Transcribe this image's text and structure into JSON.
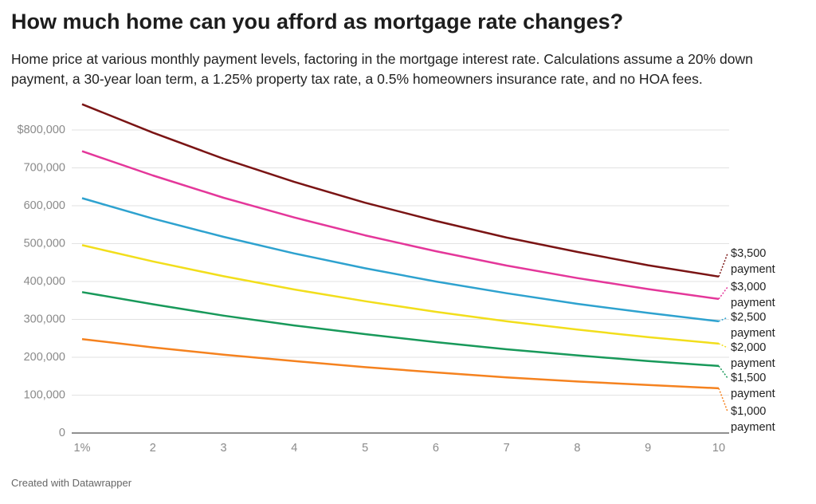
{
  "chart_data": {
    "type": "line",
    "title": "How much home can you afford as mortgage rate changes?",
    "subtitle": "Home price at various monthly payment levels, factoring in the mortgage interest rate. Calculations assume a 20% down payment, a 30-year loan term, a 1.25% property tax rate, a 0.5% homeowners insurance rate, and no HOA fees.",
    "footer": "Created with Datawrapper",
    "x": [
      1,
      2,
      3,
      4,
      5,
      6,
      7,
      8,
      9,
      10
    ],
    "xlim": [
      1,
      10
    ],
    "xticks": [
      {
        "value": 1,
        "label": "1%"
      },
      2,
      3,
      4,
      5,
      6,
      7,
      8,
      9,
      10
    ],
    "ylim": [
      0,
      880000
    ],
    "yticks": [
      0,
      {
        "value": 100000,
        "label": "100,000"
      },
      {
        "value": 200000,
        "label": "200,000"
      },
      {
        "value": 300000,
        "label": "300,000"
      },
      {
        "value": 400000,
        "label": "400,000"
      },
      {
        "value": 500000,
        "label": "500,000"
      },
      {
        "value": 600000,
        "label": "600,000"
      },
      {
        "value": 700000,
        "label": "700,000"
      },
      {
        "value": 800000,
        "label": "$800,000"
      }
    ],
    "grid": true,
    "series": [
      {
        "name": "$3,500 payment",
        "color": "#7a1414",
        "values": [
          868000,
          793000,
          724000,
          663000,
          608000,
          560000,
          516000,
          478000,
          443000,
          413000
        ]
      },
      {
        "name": "$3,000 payment",
        "color": "#e4379a",
        "values": [
          744000,
          680000,
          621000,
          569000,
          522000,
          480000,
          442000,
          409000,
          380000,
          354000
        ]
      },
      {
        "name": "$2,500 payment",
        "color": "#2ea2cf",
        "values": [
          620000,
          566000,
          518000,
          474000,
          435000,
          400000,
          369000,
          341000,
          317000,
          295000
        ]
      },
      {
        "name": "$2,000 payment",
        "color": "#f2de1c",
        "values": [
          496000,
          453000,
          414000,
          379000,
          348000,
          320000,
          295000,
          273000,
          253000,
          236000
        ]
      },
      {
        "name": "$1,500 payment",
        "color": "#18995a",
        "values": [
          372000,
          340000,
          310000,
          284000,
          261000,
          240000,
          221000,
          205000,
          190000,
          177000
        ]
      },
      {
        "name": "$1,000 payment",
        "color": "#f5821f",
        "values": [
          248000,
          226000,
          207000,
          190000,
          174000,
          160000,
          147000,
          136000,
          127000,
          118000
        ]
      }
    ]
  }
}
